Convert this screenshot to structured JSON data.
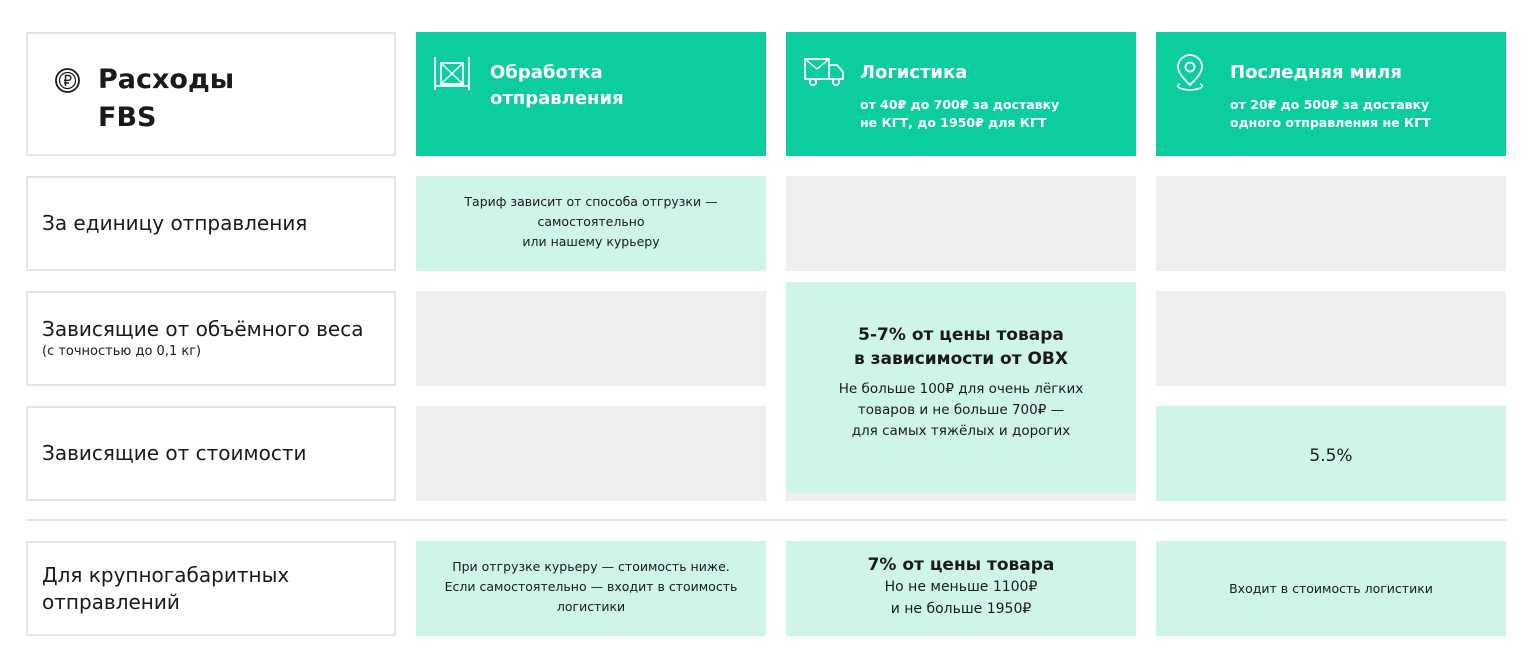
{
  "header": {
    "title_line1": "Расходы",
    "title_line2": "FBS",
    "title_icon": "ruble-circle-icon",
    "columns": [
      {
        "icon": "warehouse-box-icon",
        "title_line1": "Обработка",
        "title_line2": "отправления"
      },
      {
        "icon": "delivery-truck-icon",
        "title": "Логистика",
        "sub_line1": "от 40₽ до 700₽ за доставку",
        "sub_line2": "не КГТ, до 1950₽ для КГТ"
      },
      {
        "icon": "location-pin-icon",
        "title": "Последняя миля",
        "sub_line1": "от 20₽ до 500₽ за доставку",
        "sub_line2": "одного отправления не КГТ"
      }
    ]
  },
  "rows": {
    "per_unit": {
      "label": "За единицу отправления",
      "processing": [
        "Тариф зависит от способа отгрузки —",
        "самостоятельно",
        "или нашему курьеру"
      ]
    },
    "volume_weight": {
      "label": "Зависящие от объёмного веса",
      "sublabel": "(с точностью до 0,1 кг)"
    },
    "cost": {
      "label": "Зависящие от стоимости",
      "last_mile": "5.5%"
    },
    "logistics_merged": {
      "big_line1": "5-7% от цены товара",
      "big_line2": "в зависимости от ОВХ",
      "note_line1": "Не больше 100₽ для очень лёгких",
      "note_line2": "товаров и не больше 700₽ —",
      "note_line3": "для самых тяжёлых и дорогих"
    },
    "oversized": {
      "label_line1": "Для крупногабаритных",
      "label_line2": "отправлений",
      "processing": [
        "При отгрузке курьеру — стоимость ниже.",
        "Если самостоятельно — входит в стоимость",
        "логистики"
      ],
      "logistics_big": "7% от цены товара",
      "logistics_line1": "Но не меньше 1100₽",
      "logistics_line2": "и не больше 1950₽",
      "last_mile": "Входит в стоимость логистики"
    }
  },
  "colors": {
    "header_green": "#0ccd9e",
    "mint": "#cff4ea",
    "grey": "#eef0ef",
    "border": "#e3e6e5"
  }
}
